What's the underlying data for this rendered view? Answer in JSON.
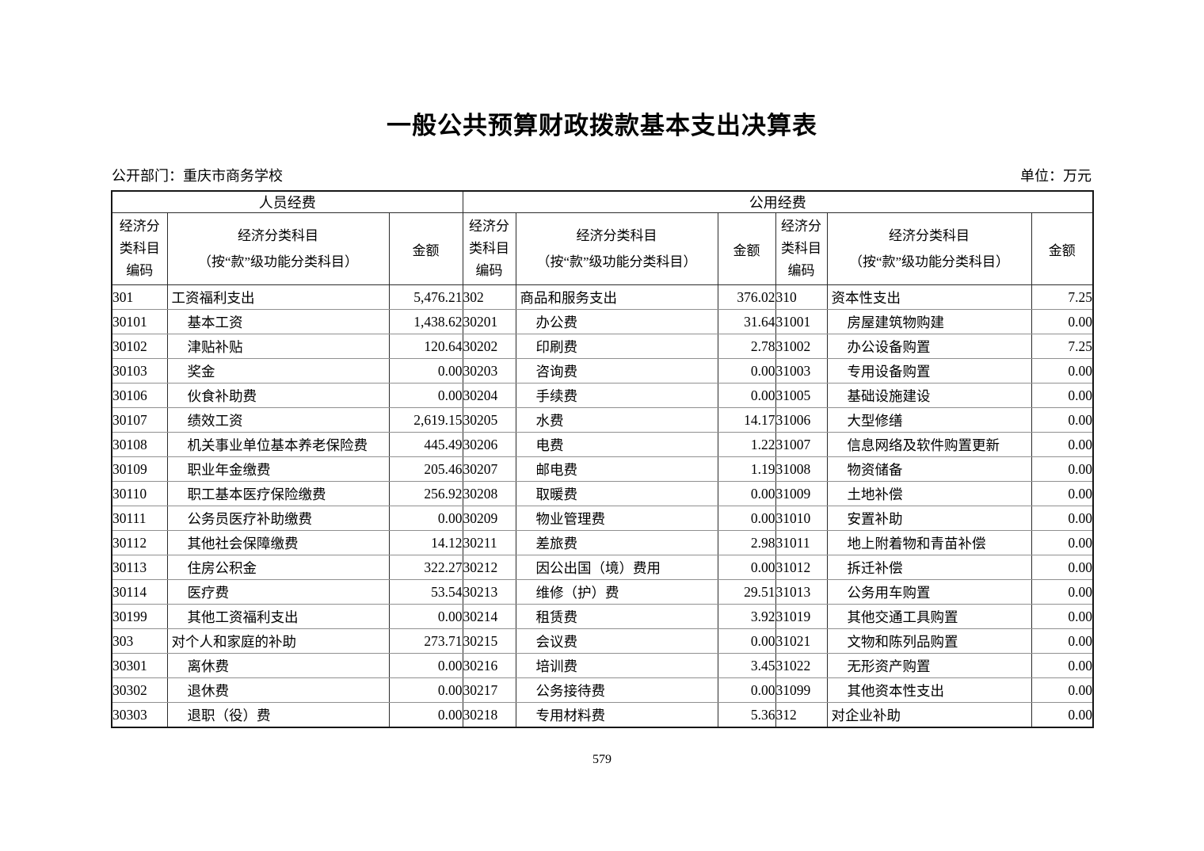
{
  "page": {
    "title": "一般公共预算财政拨款基本支出决算表",
    "page_number": "579"
  },
  "meta": {
    "department_line": "公开部门：重庆市商务学校",
    "unit_line": "单位：万元"
  },
  "table": {
    "band_headers": [
      "人员经费",
      "公用经费"
    ],
    "column_headers": {
      "code_lines": [
        "经济分",
        "类科目",
        "编码"
      ],
      "subject_lines": [
        "经济分类科目",
        "（按“款”级功能分类科目）"
      ],
      "amount": "金额"
    },
    "groups": [
      {
        "name": "personnel-expenses",
        "rows": [
          {
            "code": "301",
            "name": "工资福利支出",
            "amount": "5,476.21",
            "level": 1
          },
          {
            "code": "30101",
            "name": "基本工资",
            "amount": "1,438.62",
            "level": 2
          },
          {
            "code": "30102",
            "name": "津贴补贴",
            "amount": "120.64",
            "level": 2
          },
          {
            "code": "30103",
            "name": "奖金",
            "amount": "0.00",
            "level": 2
          },
          {
            "code": "30106",
            "name": "伙食补助费",
            "amount": "0.00",
            "level": 2
          },
          {
            "code": "30107",
            "name": "绩效工资",
            "amount": "2,619.15",
            "level": 2
          },
          {
            "code": "30108",
            "name": "机关事业单位基本养老保险费",
            "amount": "445.49",
            "level": 2
          },
          {
            "code": "30109",
            "name": "职业年金缴费",
            "amount": "205.46",
            "level": 2
          },
          {
            "code": "30110",
            "name": "职工基本医疗保险缴费",
            "amount": "256.92",
            "level": 2
          },
          {
            "code": "30111",
            "name": "公务员医疗补助缴费",
            "amount": "0.00",
            "level": 2
          },
          {
            "code": "30112",
            "name": "其他社会保障缴费",
            "amount": "14.12",
            "level": 2
          },
          {
            "code": "30113",
            "name": "住房公积金",
            "amount": "322.27",
            "level": 2
          },
          {
            "code": "30114",
            "name": "医疗费",
            "amount": "53.54",
            "level": 2
          },
          {
            "code": "30199",
            "name": "其他工资福利支出",
            "amount": "0.00",
            "level": 2
          },
          {
            "code": "303",
            "name": "对个人和家庭的补助",
            "amount": "273.71",
            "level": 1
          },
          {
            "code": "30301",
            "name": "离休费",
            "amount": "0.00",
            "level": 2
          },
          {
            "code": "30302",
            "name": "退休费",
            "amount": "0.00",
            "level": 2
          },
          {
            "code": "30303",
            "name": "退职（役）费",
            "amount": "0.00",
            "level": 2
          }
        ]
      },
      {
        "name": "goods-and-services",
        "rows": [
          {
            "code": "302",
            "name": "商品和服务支出",
            "amount": "376.02",
            "level": 1
          },
          {
            "code": "30201",
            "name": "办公费",
            "amount": "31.64",
            "level": 2
          },
          {
            "code": "30202",
            "name": "印刷费",
            "amount": "2.78",
            "level": 2
          },
          {
            "code": "30203",
            "name": "咨询费",
            "amount": "0.00",
            "level": 2
          },
          {
            "code": "30204",
            "name": "手续费",
            "amount": "0.00",
            "level": 2
          },
          {
            "code": "30205",
            "name": "水费",
            "amount": "14.17",
            "level": 2
          },
          {
            "code": "30206",
            "name": "电费",
            "amount": "1.22",
            "level": 2
          },
          {
            "code": "30207",
            "name": "邮电费",
            "amount": "1.19",
            "level": 2
          },
          {
            "code": "30208",
            "name": "取暖费",
            "amount": "0.00",
            "level": 2
          },
          {
            "code": "30209",
            "name": "物业管理费",
            "amount": "0.00",
            "level": 2
          },
          {
            "code": "30211",
            "name": "差旅费",
            "amount": "2.98",
            "level": 2
          },
          {
            "code": "30212",
            "name": "因公出国（境）费用",
            "amount": "0.00",
            "level": 2
          },
          {
            "code": "30213",
            "name": "维修（护）费",
            "amount": "29.51",
            "level": 2
          },
          {
            "code": "30214",
            "name": "租赁费",
            "amount": "3.92",
            "level": 2
          },
          {
            "code": "30215",
            "name": "会议费",
            "amount": "0.00",
            "level": 2
          },
          {
            "code": "30216",
            "name": "培训费",
            "amount": "3.45",
            "level": 2
          },
          {
            "code": "30217",
            "name": "公务接待费",
            "amount": "0.00",
            "level": 2
          },
          {
            "code": "30218",
            "name": "专用材料费",
            "amount": "5.36",
            "level": 2
          }
        ]
      },
      {
        "name": "capital-expenditure",
        "rows": [
          {
            "code": "310",
            "name": "资本性支出",
            "amount": "7.25",
            "level": 1
          },
          {
            "code": "31001",
            "name": "房屋建筑物购建",
            "amount": "0.00",
            "level": 2
          },
          {
            "code": "31002",
            "name": "办公设备购置",
            "amount": "7.25",
            "level": 2
          },
          {
            "code": "31003",
            "name": "专用设备购置",
            "amount": "0.00",
            "level": 2
          },
          {
            "code": "31005",
            "name": "基础设施建设",
            "amount": "0.00",
            "level": 2
          },
          {
            "code": "31006",
            "name": "大型修缮",
            "amount": "0.00",
            "level": 2
          },
          {
            "code": "31007",
            "name": "信息网络及软件购置更新",
            "amount": "0.00",
            "level": 2
          },
          {
            "code": "31008",
            "name": "物资储备",
            "amount": "0.00",
            "level": 2
          },
          {
            "code": "31009",
            "name": "土地补偿",
            "amount": "0.00",
            "level": 2
          },
          {
            "code": "31010",
            "name": "安置补助",
            "amount": "0.00",
            "level": 2
          },
          {
            "code": "31011",
            "name": "地上附着物和青苗补偿",
            "amount": "0.00",
            "level": 2
          },
          {
            "code": "31012",
            "name": "拆迁补偿",
            "amount": "0.00",
            "level": 2
          },
          {
            "code": "31013",
            "name": "公务用车购置",
            "amount": "0.00",
            "level": 2
          },
          {
            "code": "31019",
            "name": "其他交通工具购置",
            "amount": "0.00",
            "level": 2
          },
          {
            "code": "31021",
            "name": "文物和陈列品购置",
            "amount": "0.00",
            "level": 2
          },
          {
            "code": "31022",
            "name": "无形资产购置",
            "amount": "0.00",
            "level": 2
          },
          {
            "code": "31099",
            "name": "其他资本性支出",
            "amount": "0.00",
            "level": 2
          },
          {
            "code": "312",
            "name": "对企业补助",
            "amount": "0.00",
            "level": 1
          }
        ]
      }
    ]
  }
}
